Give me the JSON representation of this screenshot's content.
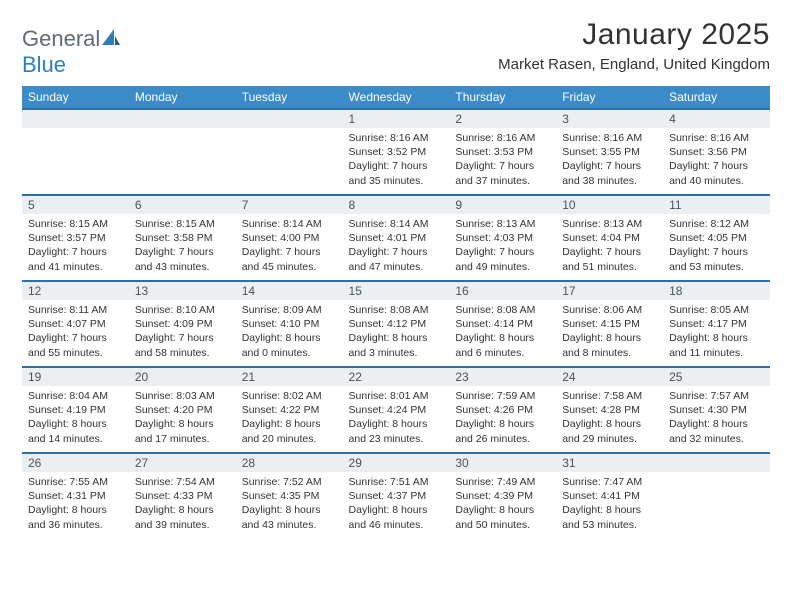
{
  "brand": {
    "part1": "General",
    "part2": "Blue"
  },
  "title": "January 2025",
  "subtitle": "Market Rasen, England, United Kingdom",
  "colors": {
    "header_bg": "#3b8bc9",
    "daynum_bg": "#eceff2",
    "border_top": "#2f6fa6",
    "text": "#333333",
    "logo_gray": "#5f6b76",
    "logo_blue": "#2f7fbf"
  },
  "dayHeaders": [
    "Sunday",
    "Monday",
    "Tuesday",
    "Wednesday",
    "Thursday",
    "Friday",
    "Saturday"
  ],
  "weeks": [
    [
      null,
      null,
      null,
      {
        "n": "1",
        "sr": "8:16 AM",
        "ss": "3:52 PM",
        "dh": "7",
        "dm": "35"
      },
      {
        "n": "2",
        "sr": "8:16 AM",
        "ss": "3:53 PM",
        "dh": "7",
        "dm": "37"
      },
      {
        "n": "3",
        "sr": "8:16 AM",
        "ss": "3:55 PM",
        "dh": "7",
        "dm": "38"
      },
      {
        "n": "4",
        "sr": "8:16 AM",
        "ss": "3:56 PM",
        "dh": "7",
        "dm": "40"
      }
    ],
    [
      {
        "n": "5",
        "sr": "8:15 AM",
        "ss": "3:57 PM",
        "dh": "7",
        "dm": "41"
      },
      {
        "n": "6",
        "sr": "8:15 AM",
        "ss": "3:58 PM",
        "dh": "7",
        "dm": "43"
      },
      {
        "n": "7",
        "sr": "8:14 AM",
        "ss": "4:00 PM",
        "dh": "7",
        "dm": "45"
      },
      {
        "n": "8",
        "sr": "8:14 AM",
        "ss": "4:01 PM",
        "dh": "7",
        "dm": "47"
      },
      {
        "n": "9",
        "sr": "8:13 AM",
        "ss": "4:03 PM",
        "dh": "7",
        "dm": "49"
      },
      {
        "n": "10",
        "sr": "8:13 AM",
        "ss": "4:04 PM",
        "dh": "7",
        "dm": "51"
      },
      {
        "n": "11",
        "sr": "8:12 AM",
        "ss": "4:05 PM",
        "dh": "7",
        "dm": "53"
      }
    ],
    [
      {
        "n": "12",
        "sr": "8:11 AM",
        "ss": "4:07 PM",
        "dh": "7",
        "dm": "55"
      },
      {
        "n": "13",
        "sr": "8:10 AM",
        "ss": "4:09 PM",
        "dh": "7",
        "dm": "58"
      },
      {
        "n": "14",
        "sr": "8:09 AM",
        "ss": "4:10 PM",
        "dh": "8",
        "dm": "0"
      },
      {
        "n": "15",
        "sr": "8:08 AM",
        "ss": "4:12 PM",
        "dh": "8",
        "dm": "3"
      },
      {
        "n": "16",
        "sr": "8:08 AM",
        "ss": "4:14 PM",
        "dh": "8",
        "dm": "6"
      },
      {
        "n": "17",
        "sr": "8:06 AM",
        "ss": "4:15 PM",
        "dh": "8",
        "dm": "8"
      },
      {
        "n": "18",
        "sr": "8:05 AM",
        "ss": "4:17 PM",
        "dh": "8",
        "dm": "11"
      }
    ],
    [
      {
        "n": "19",
        "sr": "8:04 AM",
        "ss": "4:19 PM",
        "dh": "8",
        "dm": "14"
      },
      {
        "n": "20",
        "sr": "8:03 AM",
        "ss": "4:20 PM",
        "dh": "8",
        "dm": "17"
      },
      {
        "n": "21",
        "sr": "8:02 AM",
        "ss": "4:22 PM",
        "dh": "8",
        "dm": "20"
      },
      {
        "n": "22",
        "sr": "8:01 AM",
        "ss": "4:24 PM",
        "dh": "8",
        "dm": "23"
      },
      {
        "n": "23",
        "sr": "7:59 AM",
        "ss": "4:26 PM",
        "dh": "8",
        "dm": "26"
      },
      {
        "n": "24",
        "sr": "7:58 AM",
        "ss": "4:28 PM",
        "dh": "8",
        "dm": "29"
      },
      {
        "n": "25",
        "sr": "7:57 AM",
        "ss": "4:30 PM",
        "dh": "8",
        "dm": "32"
      }
    ],
    [
      {
        "n": "26",
        "sr": "7:55 AM",
        "ss": "4:31 PM",
        "dh": "8",
        "dm": "36"
      },
      {
        "n": "27",
        "sr": "7:54 AM",
        "ss": "4:33 PM",
        "dh": "8",
        "dm": "39"
      },
      {
        "n": "28",
        "sr": "7:52 AM",
        "ss": "4:35 PM",
        "dh": "8",
        "dm": "43"
      },
      {
        "n": "29",
        "sr": "7:51 AM",
        "ss": "4:37 PM",
        "dh": "8",
        "dm": "46"
      },
      {
        "n": "30",
        "sr": "7:49 AM",
        "ss": "4:39 PM",
        "dh": "8",
        "dm": "50"
      },
      {
        "n": "31",
        "sr": "7:47 AM",
        "ss": "4:41 PM",
        "dh": "8",
        "dm": "53"
      },
      null
    ]
  ],
  "labels": {
    "sunrise": "Sunrise:",
    "sunset": "Sunset:",
    "daylight": "Daylight:",
    "hours": "hours",
    "and": "and",
    "minutes": "minutes."
  }
}
